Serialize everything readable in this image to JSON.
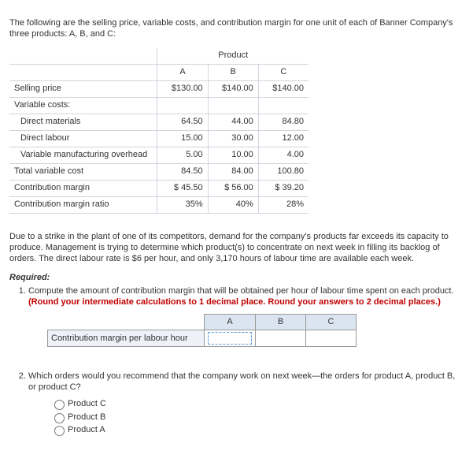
{
  "intro": "The following are the selling price, variable costs, and contribution margin for one unit of each of Banner Company's three products: A, B, and C:",
  "product_header": "Product",
  "columns": [
    "A",
    "B",
    "C"
  ],
  "table": {
    "rows": [
      {
        "label": "Selling price",
        "values": [
          "$130.00",
          "$140.00",
          "$140.00"
        ],
        "sep": true
      },
      {
        "label": "Variable costs:",
        "values": [
          "",
          "",
          ""
        ],
        "sep": true,
        "noborder": true
      },
      {
        "label": "Direct materials",
        "values": [
          "64.50",
          "44.00",
          "84.80"
        ],
        "indent": true
      },
      {
        "label": "Direct labour",
        "values": [
          "15.00",
          "30.00",
          "12.00"
        ],
        "indent": true
      },
      {
        "label": "Variable manufacturing overhead",
        "values": [
          "5.00",
          "10.00",
          "4.00"
        ],
        "indent": true
      },
      {
        "label": "Total variable cost",
        "values": [
          "84.50",
          "84.00",
          "100.80"
        ],
        "sep": true
      },
      {
        "label": "Contribution margin",
        "values": [
          "$ 45.50",
          "$ 56.00",
          "$ 39.20"
        ],
        "sep": true
      },
      {
        "label": "Contribution margin ratio",
        "values": [
          "35%",
          "40%",
          "28%"
        ],
        "sep": true
      }
    ]
  },
  "para2": "Due to a strike in the plant of one of its competitors, demand for the company's products far exceeds its capacity to produce. Management is trying to determine which product(s) to concentrate on next week in filling its backlog of orders. The direct labour rate is $6 per hour, and only 3,170 hours of labour time are available each week.",
  "required_label": "Required:",
  "q1_text": "Compute the amount of contribution margin that will be obtained per hour of labour time spent on each product. ",
  "q1_red": "(Round your intermediate calculations to 1 decimal place. Round your answers to 2 decimal places.)",
  "answer_row_label": "Contribution margin per labour hour",
  "q2_text": "Which orders would you recommend that the company work on next week—the orders for product A, product B, or product C?",
  "options": [
    "Product C",
    "Product B",
    "Product A"
  ]
}
